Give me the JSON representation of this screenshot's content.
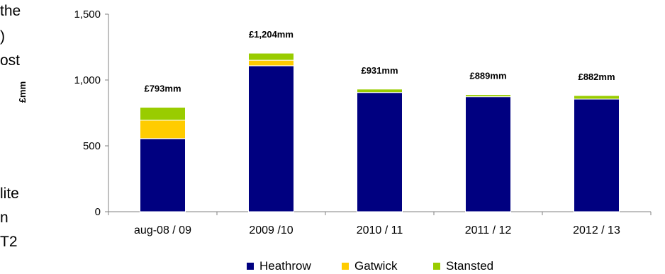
{
  "side_text": {
    "lines": [
      {
        "text": "the"
      },
      {
        "text": ")"
      },
      {
        "text": "ost"
      },
      {
        "text": "lite"
      },
      {
        "text": "n"
      },
      {
        "text": "T2"
      }
    ]
  },
  "chart_data": {
    "type": "bar",
    "stacked": true,
    "title": "",
    "xlabel": "",
    "ylabel": "£mm",
    "ylim": [
      0,
      1500
    ],
    "yticks": [
      0,
      500,
      1000,
      1500
    ],
    "ytick_labels": [
      "0",
      "500",
      "1,000",
      "1,500"
    ],
    "categories": [
      "aug-08 / 09",
      "2009 /10",
      "2010 / 11",
      "2011 / 12",
      "2012 / 13"
    ],
    "series": [
      {
        "name": "Heathrow",
        "color": "#000080",
        "values": [
          555,
          1108,
          905,
          873,
          855
        ]
      },
      {
        "name": "Gatwick",
        "color": "#FFCC00",
        "values": [
          140,
          42,
          0,
          0,
          0
        ]
      },
      {
        "name": "Stansted",
        "color": "#99CC00",
        "values": [
          98,
          54,
          26,
          16,
          27
        ]
      }
    ],
    "total_labels": [
      "£793mm",
      "£1,204mm",
      "£931mm",
      "£889mm",
      "£882mm"
    ],
    "grid": false,
    "legend_position": "bottom"
  }
}
